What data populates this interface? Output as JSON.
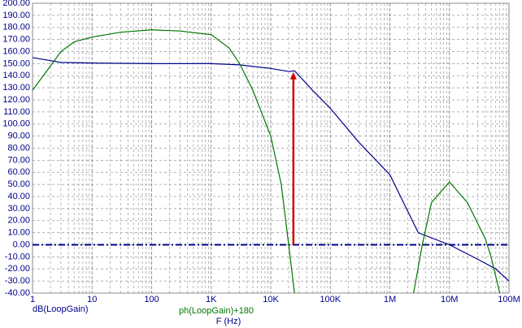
{
  "chart_data": {
    "type": "line",
    "x_scale": "log",
    "grid": true,
    "x_label": "F (Hz)",
    "xlim": [
      1,
      100000000
    ],
    "xticks": [
      1,
      10,
      100,
      {
        "value": 1000,
        "label": "1K"
      },
      {
        "value": 10000,
        "label": "10K"
      },
      {
        "value": 100000,
        "label": "100K"
      },
      {
        "value": 1000000,
        "label": "1M"
      },
      {
        "value": 10000000,
        "label": "10M"
      },
      {
        "value": 100000000,
        "label": "100M"
      }
    ],
    "ylim": [
      -40,
      200
    ],
    "yticks": [
      {
        "value": -40,
        "label": "-40.00"
      },
      {
        "value": -30,
        "label": "-30.00"
      },
      {
        "value": -20,
        "label": "-20.00"
      },
      {
        "value": -10,
        "label": "-10.00"
      },
      {
        "value": 0,
        "label": "0.00"
      },
      {
        "value": 10,
        "label": "10.00"
      },
      {
        "value": 20,
        "label": "20.00"
      },
      {
        "value": 30,
        "label": "30.00"
      },
      {
        "value": 40,
        "label": "40.00"
      },
      {
        "value": 50,
        "label": "50.00"
      },
      {
        "value": 60,
        "label": "60.00"
      },
      {
        "value": 70,
        "label": "70.00"
      },
      {
        "value": 80,
        "label": "80.00"
      },
      {
        "value": 90,
        "label": "90.00"
      },
      {
        "value": 100,
        "label": "100.00"
      },
      {
        "value": 110,
        "label": "110.00"
      },
      {
        "value": 120,
        "label": "120.00"
      },
      {
        "value": 130,
        "label": "130.00"
      },
      {
        "value": 140,
        "label": "140.00"
      },
      {
        "value": 150,
        "label": "150.00"
      },
      {
        "value": 160,
        "label": "160.00"
      },
      {
        "value": 170,
        "label": "170.00"
      },
      {
        "value": 180,
        "label": "180.00"
      },
      {
        "value": 190,
        "label": "190.00"
      },
      {
        "value": 200,
        "label": "200.00"
      }
    ],
    "reference_line": {
      "y": 0,
      "color": "#00008b"
    },
    "marker": {
      "x": 24000,
      "y_from": 0,
      "y_to": 143,
      "color": "#cc0000"
    },
    "series": [
      {
        "name": "dB(LoopGain)",
        "color": "#00008b",
        "x": [
          1,
          3,
          10,
          100,
          1000,
          3000,
          10000,
          20000,
          25000,
          30000,
          50000,
          100000,
          300000,
          1000000,
          3000000,
          10000000,
          30000000,
          60000000,
          100000000
        ],
        "values": [
          155,
          151,
          150.5,
          150,
          150,
          149,
          146,
          143.5,
          144,
          140,
          128,
          113,
          85,
          58,
          10,
          0,
          -12,
          -20,
          -30
        ]
      },
      {
        "name": "ph(LoopGain)+180",
        "color": "#007700",
        "x": [
          1,
          2,
          3,
          5,
          10,
          30,
          100,
          300,
          1000,
          2000,
          3000,
          5000,
          10000,
          15000,
          20000,
          25000,
          1000000,
          2500000,
          3500000,
          5000000,
          10000000,
          20000000,
          40000000,
          50000000,
          70000000
        ],
        "values": [
          128,
          148,
          160,
          168,
          172,
          176,
          178,
          177,
          174,
          163,
          150,
          128,
          90,
          50,
          0,
          -40,
          null,
          -40,
          0,
          35,
          52,
          35,
          5,
          -10,
          -40
        ]
      }
    ]
  }
}
